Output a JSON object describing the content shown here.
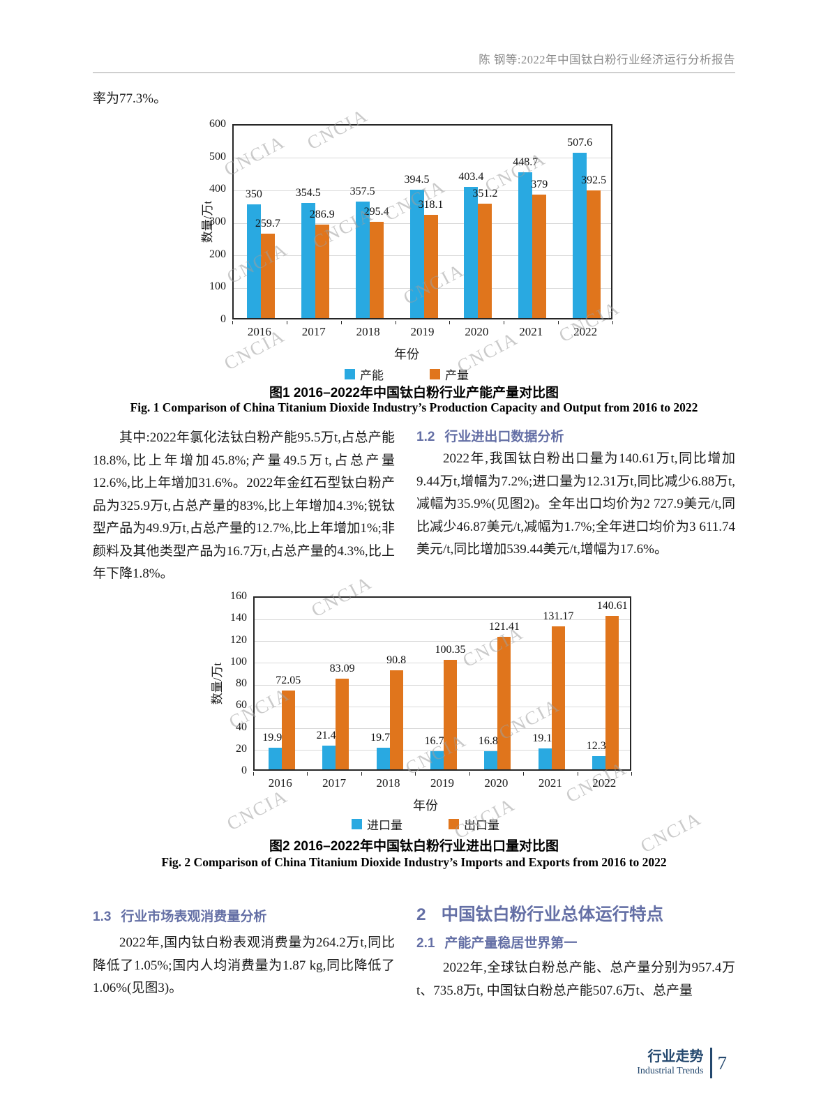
{
  "header": {
    "running_title": "陈  钢等:2022年中国钛白粉行业经济运行分析报告"
  },
  "intro_text": "率为77.3%。",
  "watermark_text": "CNCIA",
  "colors": {
    "series_blue": "#29a9e1",
    "series_orange": "#e0751c",
    "heading_slate": "#646fa5",
    "footer_navy": "#24486e"
  },
  "chart_data": [
    {
      "type": "bar",
      "title_cn": "图1  2016–2022年中国钛白粉行业产能产量对比图",
      "title_en": "Fig. 1   Comparison of China Titanium Dioxide Industry’s Production Capacity and Output from 2016 to 2022",
      "categories": [
        "2016",
        "2017",
        "2018",
        "2019",
        "2020",
        "2021",
        "2022"
      ],
      "series": [
        {
          "name": "产能",
          "color": "#29a9e1",
          "values": [
            350,
            354.5,
            357.5,
            394.5,
            403.4,
            448.7,
            507.6
          ]
        },
        {
          "name": "产量",
          "color": "#e0751c",
          "values": [
            259.7,
            286.9,
            295.4,
            318.1,
            351.2,
            379,
            392.5
          ]
        }
      ],
      "xlabel": "年份",
      "ylabel": "数量/万t",
      "ylim": [
        0,
        600
      ],
      "ytick_step": 100,
      "grid": true,
      "legend_position": "bottom"
    },
    {
      "type": "bar",
      "title_cn": "图2  2016–2022年中国钛白粉行业进出口量对比图",
      "title_en": "Fig. 2   Comparison of China Titanium Dioxide Industry’s Imports and Exports from 2016 to 2022",
      "categories": [
        "2016",
        "2017",
        "2018",
        "2019",
        "2020",
        "2021",
        "2022"
      ],
      "series": [
        {
          "name": "进口量",
          "color": "#29a9e1",
          "values": [
            19.98,
            21.49,
            19.75,
            16.71,
            16.83,
            19.19,
            12.31
          ]
        },
        {
          "name": "出口量",
          "color": "#e0751c",
          "values": [
            72.05,
            83.09,
            90.8,
            100.35,
            121.41,
            131.17,
            140.61
          ]
        }
      ],
      "xlabel": "年份",
      "ylabel": "数量/万t",
      "ylim": [
        0,
        160
      ],
      "ytick_step": 20,
      "grid": true,
      "legend_position": "bottom"
    }
  ],
  "sections": {
    "para_left_1": "其中:2022年氯化法钛白粉产能95.5万t,占总产能18.8%,比上年增加45.8%;产量49.5万t,占总产量12.6%,比上年增加31.6%。2022年金红石型钛白粉产品为325.9万t,占总产量的83%,比上年增加4.3%;锐钛型产品为49.9万t,占总产量的12.7%,比上年增加1%;非颜料及其他类型产品为16.7万t,占总产量的4.3%,比上年下降1.8%。",
    "h12_num": "1.2",
    "h12_text": "行业进出口数据分析",
    "para_right_1": "2022年,我国钛白粉出口量为140.61万t,同比增加9.44万t,增幅为7.2%;进口量为12.31万t,同比减少6.88万t,减幅为35.9%(见图2)。全年出口均价为2 727.9美元/t,同比减少46.87美元/t,减幅为1.7%;全年进口均价为3 611.74美元/t,同比增加539.44美元/t,增幅为17.6%。",
    "h13_num": "1.3",
    "h13_text": "行业市场表观消费量分析",
    "para_left_2": "2022年,国内钛白粉表观消费量为264.2万t,同比降低了1.05%;国内人均消费量为1.87 kg,同比降低了1.06%(见图3)。",
    "h2_num": "2",
    "h2_text": "中国钛白粉行业总体运行特点",
    "h21_num": "2.1",
    "h21_text": "产能产量稳居世界第一",
    "para_right_2": "2022年,全球钛白粉总产能、总产量分别为957.4万t、735.8万t, 中国钛白粉总产能507.6万t、总产量"
  },
  "footer": {
    "label_cn": "行业走势",
    "label_en": "Industrial Trends",
    "page_number": "7"
  }
}
